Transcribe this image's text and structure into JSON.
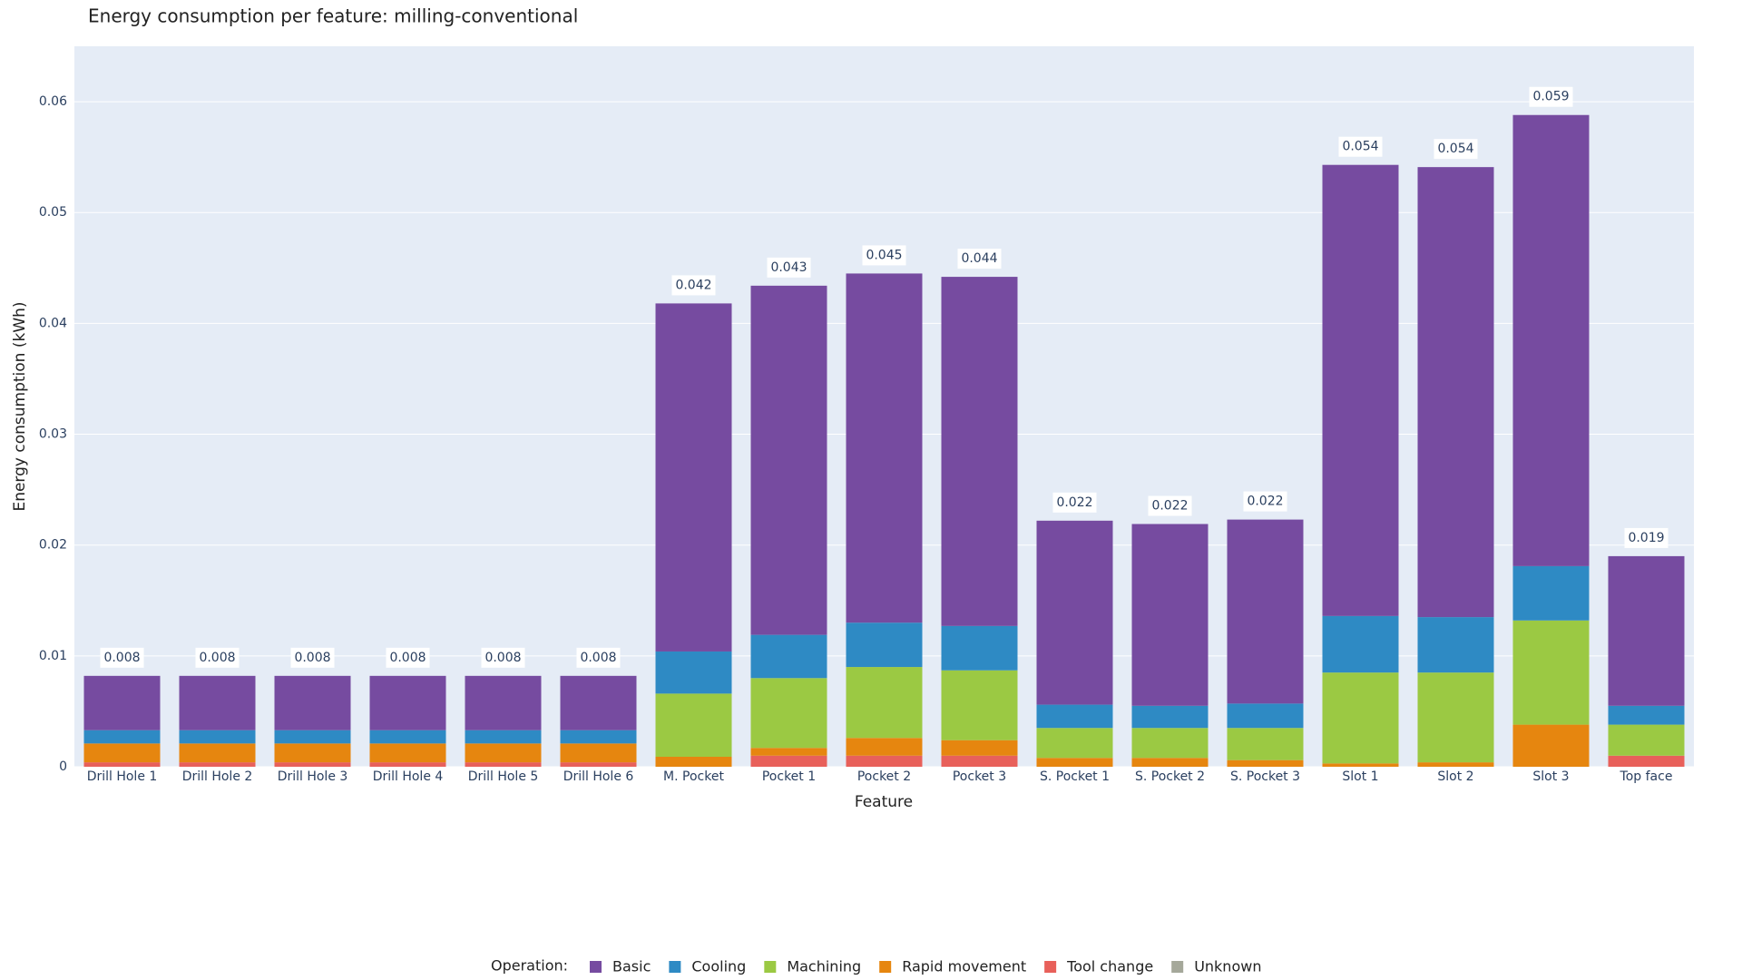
{
  "chart_data": {
    "type": "stacked_bar",
    "title": "Energy consumption per feature: milling-conventional",
    "x_label": "Feature",
    "y_label": "Energy consumption (kWh)",
    "legend_title": "Operation:",
    "legend_position": "bottom",
    "grid": true,
    "categories": [
      "Drill Hole 1",
      "Drill Hole 2",
      "Drill Hole 3",
      "Drill Hole 4",
      "Drill Hole 5",
      "Drill Hole 6",
      "M. Pocket",
      "Pocket 1",
      "Pocket 2",
      "Pocket 3",
      "S. Pocket 1",
      "S. Pocket 2",
      "S. Pocket 3",
      "Slot 1",
      "Slot 2",
      "Slot 3",
      "Top face"
    ],
    "series": [
      {
        "name": "Basic",
        "color": "#764ba0",
        "values": [
          0.0049,
          0.0049,
          0.0049,
          0.0049,
          0.0049,
          0.0049,
          0.0314,
          0.0315,
          0.0315,
          0.0315,
          0.0166,
          0.0164,
          0.0166,
          0.0407,
          0.0406,
          0.0407,
          0.0135
        ]
      },
      {
        "name": "Cooling",
        "color": "#2e8ac4",
        "values": [
          0.0012,
          0.0012,
          0.0012,
          0.0012,
          0.0012,
          0.0012,
          0.0038,
          0.0039,
          0.004,
          0.004,
          0.0021,
          0.002,
          0.0022,
          0.0051,
          0.005,
          0.0049,
          0.0017
        ]
      },
      {
        "name": "Machining",
        "color": "#9bc943",
        "values": [
          0,
          0,
          0,
          0,
          0,
          0,
          0.0057,
          0.0063,
          0.0064,
          0.0063,
          0.0027,
          0.0027,
          0.0029,
          0.0082,
          0.0081,
          0.0094,
          0.0028
        ]
      },
      {
        "name": "Rapid movement",
        "color": "#e6860f",
        "values": [
          0.0017,
          0.0017,
          0.0017,
          0.0017,
          0.0017,
          0.0017,
          0.0009,
          0.0007,
          0.0016,
          0.0014,
          0.0008,
          0.0008,
          0.0006,
          0.0003,
          0.0004,
          0.0038,
          0
        ]
      },
      {
        "name": "Tool change",
        "color": "#e8605a",
        "values": [
          0.0004,
          0.0004,
          0.0004,
          0.0004,
          0.0004,
          0.0004,
          0,
          0.001,
          0.001,
          0.001,
          0,
          0,
          0,
          0,
          0,
          0,
          0.001
        ]
      },
      {
        "name": "Unknown",
        "color": "#a5a89a",
        "values": [
          0,
          0,
          0,
          0,
          0,
          0,
          0,
          0,
          0,
          0,
          0,
          0,
          0,
          0,
          0,
          0,
          0
        ]
      }
    ],
    "totals": [
      0.008,
      0.008,
      0.008,
      0.008,
      0.008,
      0.008,
      0.042,
      0.043,
      0.045,
      0.044,
      0.022,
      0.022,
      0.022,
      0.054,
      0.054,
      0.059,
      0.019
    ],
    "ylim": [
      0,
      0.065
    ],
    "yticks": [
      0,
      0.01,
      0.02,
      0.03,
      0.04,
      0.05,
      0.06
    ]
  }
}
